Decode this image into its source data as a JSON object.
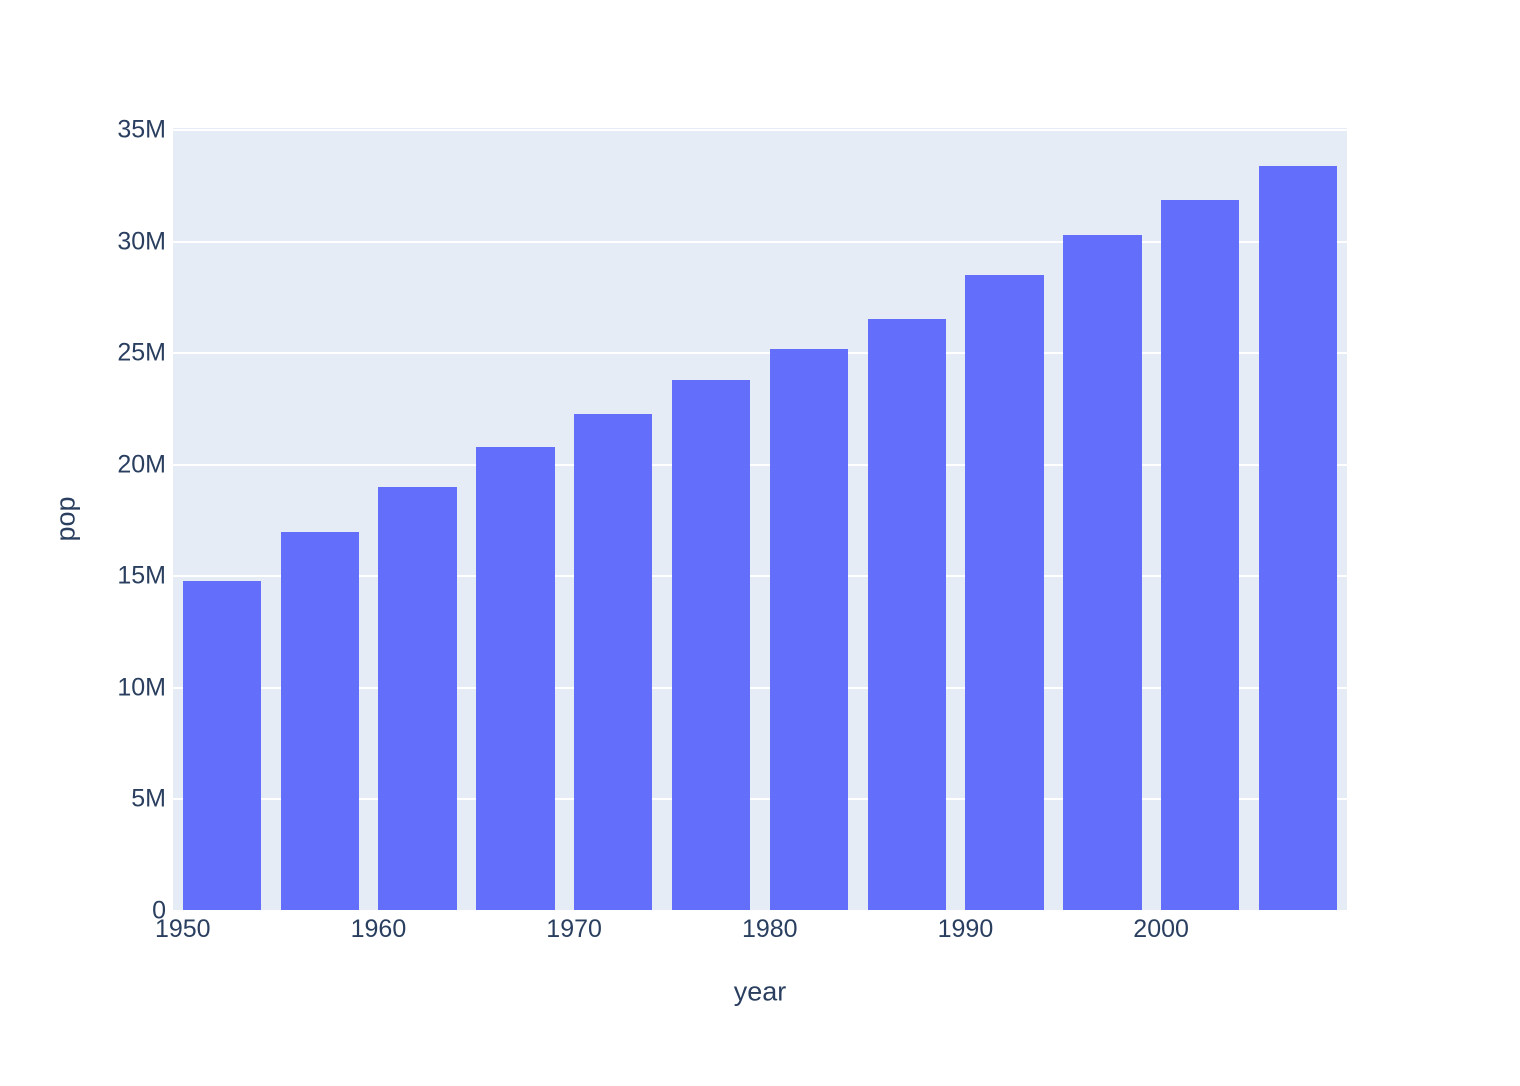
{
  "chart_data": {
    "type": "bar",
    "title": "",
    "xlabel": "year",
    "ylabel": "pop",
    "legend": "none",
    "grid": "horizontal",
    "x": [
      1952,
      1957,
      1962,
      1967,
      1972,
      1977,
      1982,
      1987,
      1992,
      1997,
      2002,
      2007
    ],
    "values": [
      14800000,
      17000000,
      19000000,
      20800000,
      22300000,
      23800000,
      25200000,
      26550000,
      28520000,
      30300000,
      31900000,
      33400000
    ],
    "series_name": "pop",
    "xlim": [
      1949.5,
      2009.5
    ],
    "ylim": [
      0,
      35110000
    ],
    "bar_width_x_units": 4,
    "xticks": [
      {
        "value": 1950,
        "label": "1950"
      },
      {
        "value": 1960,
        "label": "1960"
      },
      {
        "value": 1970,
        "label": "1970"
      },
      {
        "value": 1980,
        "label": "1980"
      },
      {
        "value": 1990,
        "label": "1990"
      },
      {
        "value": 2000,
        "label": "2000"
      }
    ],
    "yticks": [
      {
        "value": 0,
        "label": "0"
      },
      {
        "value": 5000000,
        "label": "5M"
      },
      {
        "value": 10000000,
        "label": "10M"
      },
      {
        "value": 15000000,
        "label": "15M"
      },
      {
        "value": 20000000,
        "label": "20M"
      },
      {
        "value": 25000000,
        "label": "25M"
      },
      {
        "value": 30000000,
        "label": "30M"
      },
      {
        "value": 35000000,
        "label": "35M"
      }
    ],
    "colors": {
      "bar": "#636efa",
      "plot_background": "#e5ecf6",
      "page_background": "#ffffff",
      "gridline": "#ffffff",
      "text": "#2a3f5f"
    }
  }
}
